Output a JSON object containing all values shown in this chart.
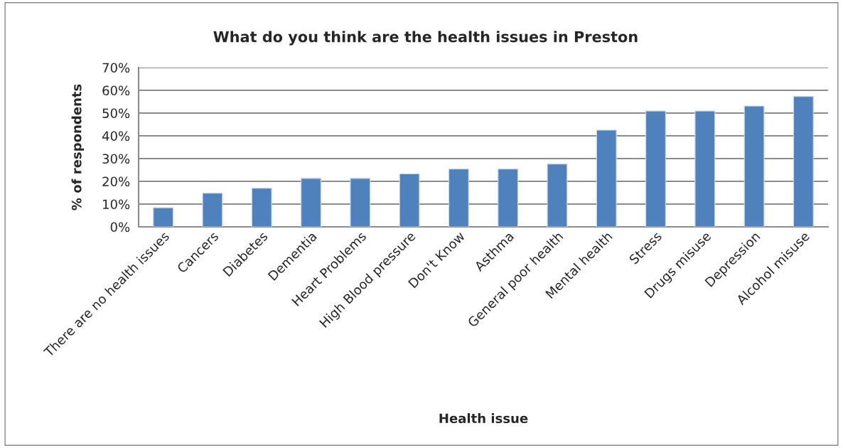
{
  "chart_data": {
    "type": "bar",
    "title": "What do you think are the health issues in Preston",
    "xlabel": "Health issue",
    "ylabel": "% of respondents",
    "categories": [
      "There are no health issues",
      "Cancers",
      "Diabetes",
      "Dementia",
      "Heart Problems",
      "High Blood pressure",
      "Don't Know",
      "Asthma",
      "General poor health",
      "Mental health",
      "Stress",
      "Drugs misuse",
      "Depression",
      "Alcohol misuse"
    ],
    "values": [
      8.4,
      14.8,
      17.0,
      21.3,
      21.3,
      23.3,
      25.4,
      25.4,
      27.6,
      42.5,
      50.9,
      50.9,
      53.1,
      57.3
    ],
    "color": "#4f81bd",
    "ylim": [
      0,
      70
    ],
    "yticks": [
      {
        "value": 0,
        "label": "0%"
      },
      {
        "value": 10,
        "label": "10%"
      },
      {
        "value": 20,
        "label": "20%"
      },
      {
        "value": 30,
        "label": "30%"
      },
      {
        "value": 40,
        "label": "40%"
      },
      {
        "value": 50,
        "label": "50%"
      },
      {
        "value": 60,
        "label": "60%"
      },
      {
        "value": 70,
        "label": "70%"
      }
    ],
    "grid": "y"
  }
}
